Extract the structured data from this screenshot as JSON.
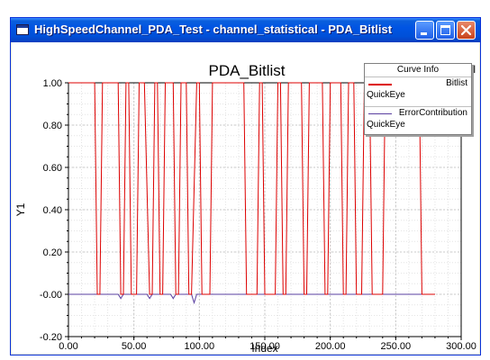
{
  "window": {
    "title": "HighSpeedChannel_PDA_Test - channel_statistical - PDA_Bitlist"
  },
  "chart": {
    "title": "PDA_Bitlist",
    "corner_label": "channel_statistical",
    "legend_title": "Curve Info"
  },
  "colors": {
    "titlebar": "#0054e3",
    "bitlist": "#dd0000",
    "errorcontribution": "#5a3fa0",
    "grid": "#c8c8c8"
  },
  "chart_data": {
    "type": "line",
    "title": "PDA_Bitlist",
    "xlabel": "Index",
    "ylabel": "Y1",
    "xlim": [
      0,
      300
    ],
    "ylim": [
      -0.2,
      1.0
    ],
    "x_ticks": [
      "0.00",
      "50.00",
      "100.00",
      "150.00",
      "200.00",
      "250.00",
      "300.00"
    ],
    "y_ticks": [
      "-0.20",
      "-0.00",
      "0.20",
      "0.40",
      "0.60",
      "0.80",
      "1.00"
    ],
    "grid": true,
    "legend": "top-right",
    "series": [
      {
        "name": "Bitlist",
        "sub": "QuickEye",
        "color": "#dd0000",
        "x": [
          0,
          20,
          22,
          24,
          26,
          30,
          36,
          38,
          40,
          42,
          44,
          46,
          48,
          52,
          54,
          56,
          58,
          62,
          64,
          66,
          68,
          70,
          72,
          74,
          76,
          80,
          82,
          84,
          86,
          90,
          92,
          94,
          98,
          100,
          102,
          104,
          108,
          110,
          112,
          114,
          118,
          120,
          124,
          126,
          132,
          134,
          136,
          138,
          140,
          142,
          144,
          146,
          148,
          150,
          152,
          158,
          160,
          162,
          164,
          166,
          168,
          176,
          178,
          180,
          182,
          184,
          186,
          192,
          194,
          196,
          198,
          200,
          202,
          208,
          210,
          212,
          214,
          216,
          218,
          220,
          224,
          226,
          228,
          230,
          232,
          234,
          236,
          238,
          240,
          242,
          244,
          246,
          248,
          250,
          252,
          254,
          256,
          258,
          260,
          262,
          264,
          268,
          270,
          272,
          274,
          276,
          278,
          280
        ],
        "y": [
          1,
          1,
          0,
          0,
          1,
          1,
          1,
          1,
          0,
          0,
          1,
          1,
          0,
          0,
          1,
          1,
          1,
          0,
          0,
          1,
          1,
          0,
          0,
          1,
          1,
          1,
          0,
          0,
          1,
          1,
          0,
          0,
          1,
          1,
          0,
          0,
          0,
          1,
          1,
          1,
          1,
          1,
          1,
          1,
          1,
          1,
          0,
          0,
          0,
          0,
          0,
          1,
          1,
          0,
          0,
          0,
          1,
          1,
          0,
          0,
          1,
          1,
          1,
          0,
          0,
          1,
          1,
          1,
          1,
          0,
          0,
          1,
          1,
          1,
          0,
          0,
          1,
          1,
          1,
          0,
          0,
          1,
          1,
          1,
          0,
          0,
          0,
          0,
          0,
          1,
          1,
          1,
          1,
          1,
          1,
          1,
          1,
          1,
          1,
          1,
          1,
          1,
          0,
          0,
          0,
          0,
          0,
          0
        ]
      },
      {
        "name": "ErrorContribution",
        "sub": "QuickEye",
        "color": "#5a3fa0",
        "x": [
          0,
          38,
          40,
          42,
          44,
          60,
          62,
          64,
          66,
          78,
          80,
          82,
          84,
          94,
          96,
          98,
          100,
          280
        ],
        "y": [
          0,
          0,
          -0.02,
          0,
          0,
          0,
          -0.02,
          0,
          0,
          0,
          -0.02,
          0,
          0,
          0,
          -0.04,
          0,
          0,
          0
        ]
      }
    ]
  }
}
